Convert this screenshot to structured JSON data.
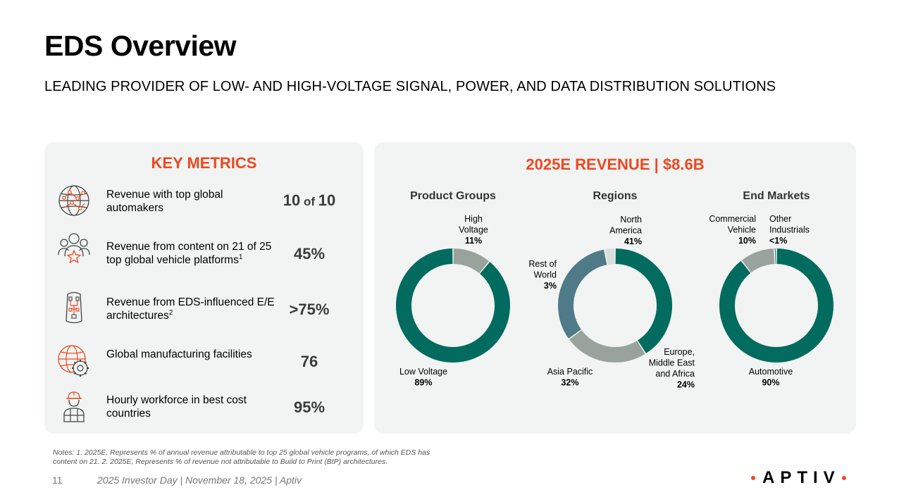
{
  "title": "EDS Overview",
  "subtitle": "LEADING PROVIDER OF LOW- AND HIGH-VOLTAGE SIGNAL, POWER, AND DATA DISTRIBUTION SOLUTIONS",
  "colors": {
    "accent": "#f0471f",
    "teal": "#006b5e",
    "gray": "#9aa29c",
    "slate": "#4f7a87",
    "light": "#d9dddb"
  },
  "key_metrics": {
    "heading": "KEY METRICS",
    "items": [
      {
        "icon": "globe-network-icon",
        "label": "Revenue with top global automakers",
        "sup": "",
        "value_main": "10",
        "value_mid": " of ",
        "value_end": "10"
      },
      {
        "icon": "people-star-icon",
        "label": "Revenue from content on 21 of 25 top global vehicle platforms",
        "sup": "1",
        "value_main": "45%",
        "value_mid": "",
        "value_end": ""
      },
      {
        "icon": "vehicle-architecture-icon",
        "label": "Revenue from EDS-influenced E/E architectures",
        "sup": "2",
        "value_main": ">75%",
        "value_mid": "",
        "value_end": ""
      },
      {
        "icon": "globe-gear-icon",
        "label": "Global manufacturing facilities",
        "sup": "",
        "value_main": "76",
        "value_mid": "",
        "value_end": ""
      },
      {
        "icon": "worker-icon",
        "label": "Hourly workforce in best cost countries",
        "sup": "",
        "value_main": "95%",
        "value_mid": "",
        "value_end": ""
      }
    ]
  },
  "revenue": {
    "heading": "2025E REVENUE | $8.6B"
  },
  "chart_data": [
    {
      "type": "pie",
      "title": "Product Groups",
      "slices": [
        {
          "label": "High Voltage",
          "value": 11,
          "pct_label": "11%",
          "color": "#9aa29c"
        },
        {
          "label": "Low Voltage",
          "value": 89,
          "pct_label": "89%",
          "color": "#006b5e"
        }
      ]
    },
    {
      "type": "pie",
      "title": "Regions",
      "slices": [
        {
          "label": "North America",
          "value": 41,
          "pct_label": "41%",
          "color": "#006b5e"
        },
        {
          "label": "Europe, Middle East and Africa",
          "value": 24,
          "pct_label": "24%",
          "color": "#9aa29c"
        },
        {
          "label": "Asia Pacific",
          "value": 32,
          "pct_label": "32%",
          "color": "#4f7a87"
        },
        {
          "label": "Rest of World",
          "value": 3,
          "pct_label": "3%",
          "color": "#d9dddb"
        }
      ]
    },
    {
      "type": "pie",
      "title": "End Markets",
      "slices": [
        {
          "label": "Automotive",
          "value": 90,
          "pct_label": "90%",
          "color": "#006b5e"
        },
        {
          "label": "Commercial Vehicle",
          "value": 10,
          "pct_label": "10%",
          "color": "#9aa29c"
        },
        {
          "label": "Other Industrials",
          "value": 0.6,
          "pct_label": "<1%",
          "color": "#4f7a87"
        }
      ]
    }
  ],
  "notes": "Notes: 1. 2025E, Represents % of annual revenue attributable to top 25 global vehicle programs, of which EDS has content on 21. 2. 2025E, Represents % of revenue not attributable to Build to Print (BtP) architectures.",
  "footer": {
    "page": "11",
    "text": "2025 Investor Day | November 18, 2025 | Aptiv"
  },
  "logo": {
    "text": "APTIV"
  }
}
